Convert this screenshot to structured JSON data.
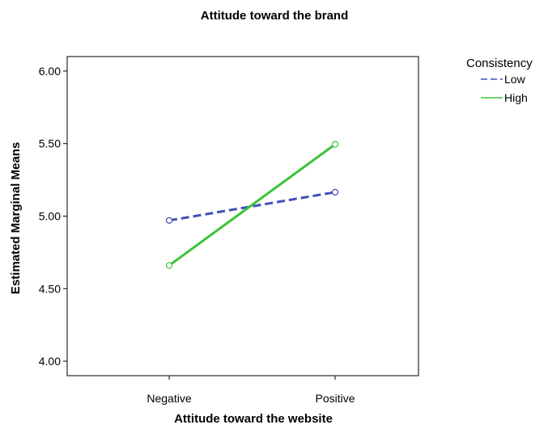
{
  "chart_data": {
    "type": "line",
    "title": "Attitude toward the brand",
    "xlabel": "Attitude toward the website",
    "ylabel": "Estimated Marginal Means",
    "categories": [
      "Negative",
      "Positive"
    ],
    "ylim": [
      3.9,
      6.1
    ],
    "yticks": [
      "4.00",
      "4.50",
      "5.00",
      "5.50",
      "6.00"
    ],
    "ytick_values": [
      4.0,
      4.5,
      5.0,
      5.5,
      6.0
    ],
    "grid": false,
    "legend": {
      "title": "Consistency",
      "placement": "right"
    },
    "series": [
      {
        "name": "Low",
        "values": [
          4.97,
          5.165
        ],
        "color": "#3f51b5",
        "dashed": true
      },
      {
        "name": "High",
        "values": [
          4.66,
          5.495
        ],
        "color": "#3cc33c",
        "dashed": false
      }
    ]
  }
}
